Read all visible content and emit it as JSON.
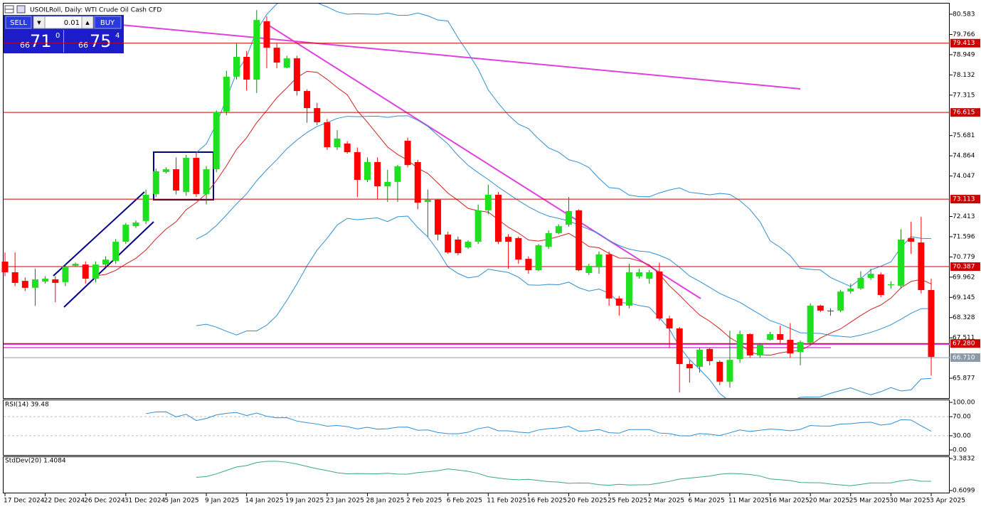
{
  "chart_data": {
    "type": "candlestick",
    "title": "USOILRoll, Daily: WTI Crude Oil Cash CFD",
    "categories": [
      "17 Dec 2024",
      null,
      null,
      null,
      "22 Dec 2024",
      null,
      null,
      null,
      "26 Dec 2024",
      null,
      null,
      null,
      "31 Dec 2024",
      null,
      null,
      null,
      "5 Jan 2025",
      null,
      null,
      null,
      "9 Jan 2025",
      null,
      null,
      null,
      "14 Jan 2025",
      null,
      null,
      null,
      "19 Jan 2025",
      null,
      null,
      null,
      "23 Jan 2025",
      null,
      null,
      null,
      "28 Jan 2025",
      null,
      null,
      null,
      "2 Feb 2025",
      null,
      null,
      null,
      "6 Feb 2025",
      null,
      null,
      null,
      "11 Feb 2025",
      null,
      null,
      null,
      "16 Feb 2025",
      null,
      null,
      null,
      "20 Feb 2025",
      null,
      null,
      null,
      "25 Feb 2025",
      null,
      null,
      null,
      "2 Mar 2025",
      null,
      null,
      null,
      "6 Mar 2025",
      null,
      null,
      null,
      "11 Mar 2025",
      null,
      null,
      null,
      "16 Mar 2025",
      null,
      null,
      null,
      "20 Mar 2025",
      null,
      null,
      null,
      "25 Mar 2025",
      null,
      null,
      null,
      "30 Mar 2025",
      null,
      null,
      null,
      "3 Apr 2025"
    ],
    "open": [
      70.59,
      70.16,
      69.81,
      69.53,
      69.78,
      69.87,
      69.76,
      70.42,
      70.47,
      69.9,
      70.47,
      70.62,
      71.39,
      72.02,
      72.23,
      73.32,
      74.21,
      74.32,
      73.4,
      74.78,
      73.32,
      74.32,
      76.65,
      78.06,
      78.86,
      77.94,
      80.3,
      79.23,
      78.43,
      78.8,
      77.48,
      76.79,
      76.22,
      75.21,
      75.36,
      75.01,
      73.89,
      74.61,
      73.63,
      73.81,
      75.47,
      74.61,
      73.0,
      73.09,
      71.68,
      71.48,
      71.16,
      71.39,
      72.66,
      73.29,
      71.59,
      71.54,
      70.7,
      70.24,
      71.19,
      71.74,
      72.08,
      72.66,
      70.13,
      70.36,
      70.88,
      69.1,
      68.81,
      69.99,
      69.9,
      70.19,
      68.29,
      67.89,
      66.45,
      66.34,
      67.06,
      66.54,
      65.74,
      66.65,
      67.66,
      66.8,
      67.43,
      67.66,
      67.43,
      66.94,
      67.31,
      68.81,
      68.61,
      68.61,
      69.38,
      69.5,
      69.93,
      70.07,
      69.67,
      69.61,
      71.54,
      71.36,
      69.44
    ],
    "high": [
      70.96,
      70.96,
      69.95,
      70.3,
      70.0,
      70.0,
      70.5,
      70.55,
      70.6,
      70.6,
      70.8,
      71.5,
      72.15,
      72.25,
      73.5,
      74.35,
      74.4,
      74.8,
      74.9,
      75.0,
      74.45,
      76.7,
      78.3,
      79.4,
      79.1,
      80.75,
      80.5,
      79.4,
      78.9,
      78.9,
      77.55,
      77.0,
      76.35,
      75.9,
      75.45,
      75.2,
      74.8,
      74.8,
      74.3,
      74.5,
      75.6,
      74.7,
      73.5,
      73.1,
      71.8,
      71.6,
      71.45,
      72.9,
      73.7,
      73.4,
      71.7,
      71.6,
      70.8,
      71.3,
      71.85,
      72.1,
      73.2,
      72.7,
      70.5,
      71.0,
      71.0,
      69.2,
      70.5,
      70.3,
      70.25,
      70.55,
      68.4,
      67.95,
      66.6,
      67.1,
      67.1,
      66.6,
      67.8,
      67.8,
      67.7,
      67.3,
      67.75,
      68.0,
      68.1,
      67.4,
      68.9,
      68.85,
      68.7,
      69.45,
      69.7,
      70.2,
      70.3,
      70.15,
      69.8,
      71.9,
      72.2,
      72.4,
      69.9
    ],
    "low": [
      70.0,
      69.6,
      69.4,
      68.8,
      69.7,
      68.95,
      69.6,
      70.4,
      69.7,
      69.75,
      70.4,
      70.5,
      71.3,
      71.95,
      72.1,
      73.2,
      74.15,
      73.3,
      73.25,
      73.2,
      72.9,
      74.2,
      76.5,
      77.95,
      77.5,
      77.4,
      78.4,
      78.4,
      78.4,
      77.3,
      76.2,
      76.1,
      75.1,
      75.1,
      74.95,
      73.2,
      73.8,
      73.1,
      73.0,
      73.0,
      74.4,
      72.7,
      71.6,
      71.45,
      70.9,
      70.85,
      71.1,
      71.3,
      72.5,
      71.3,
      70.3,
      70.5,
      70.1,
      70.2,
      71.1,
      71.7,
      72.0,
      70.2,
      70.05,
      70.1,
      68.8,
      68.4,
      68.7,
      69.9,
      69.7,
      68.2,
      67.1,
      65.3,
      65.7,
      66.1,
      66.4,
      65.6,
      65.5,
      66.5,
      66.7,
      66.7,
      67.4,
      67.3,
      66.7,
      66.4,
      67.2,
      68.55,
      68.4,
      68.55,
      69.3,
      69.45,
      69.85,
      69.15,
      69.5,
      69.5,
      70.9,
      69.3,
      65.98
    ],
    "close": [
      70.16,
      69.73,
      69.53,
      69.87,
      69.9,
      69.73,
      70.39,
      70.5,
      69.9,
      70.47,
      70.67,
      71.39,
      72.08,
      72.17,
      73.29,
      74.24,
      74.32,
      73.46,
      74.78,
      73.32,
      74.32,
      76.62,
      78.06,
      78.86,
      77.94,
      80.35,
      79.23,
      78.63,
      78.8,
      77.48,
      76.79,
      76.22,
      75.21,
      75.56,
      75.01,
      73.89,
      74.61,
      73.63,
      73.81,
      74.44,
      74.49,
      72.97,
      73.09,
      71.68,
      70.96,
      70.93,
      71.39,
      72.66,
      73.29,
      71.39,
      71.39,
      70.67,
      70.24,
      71.25,
      71.74,
      72.02,
      72.63,
      70.24,
      70.42,
      70.88,
      69.1,
      68.81,
      70.16,
      70.16,
      70.16,
      68.29,
      67.89,
      66.45,
      66.28,
      67.03,
      66.57,
      65.74,
      66.62,
      67.66,
      66.8,
      67.23,
      67.66,
      67.43,
      66.88,
      67.34,
      68.81,
      68.61,
      68.58,
      69.38,
      69.5,
      69.93,
      70.1,
      69.24,
      69.67,
      71.48,
      71.39,
      69.44,
      66.74
    ],
    "up_color": "#1ee01e",
    "down_color": "#ff0000",
    "ylim": [
      65.075,
      81.014
    ],
    "yticks": [
      80.583,
      79.766,
      78.949,
      78.132,
      77.315,
      75.681,
      74.864,
      74.047,
      72.413,
      71.596,
      70.779,
      69.962,
      69.145,
      68.328,
      67.511,
      65.877
    ],
    "hlines": [
      79.413,
      76.615,
      73.113,
      70.387,
      {
        "value": 67.28,
        "label": "67.280"
      }
    ],
    "hline_color": "#cc0000",
    "last_price": {
      "value": 66.71,
      "label": "66.710"
    },
    "rsi": {
      "title": "RSI(14) 39.48",
      "ylim": [
        0,
        100
      ],
      "yticks": [
        {
          "value": 100,
          "label": "100.00"
        },
        {
          "value": 70,
          "label": "70.00"
        },
        {
          "value": 30,
          "label": "30.00"
        },
        {
          "value": 0,
          "label": "0.00"
        }
      ],
      "levels": [
        70,
        30
      ]
    },
    "stddev": {
      "title": "StdDev(20) 1.4084",
      "ylim": [
        0.6099,
        3.3832
      ],
      "yticks": [
        3.3832,
        0.6099
      ]
    },
    "trade_panel": {
      "sell": "SELL",
      "buy": "BUY",
      "lot": 0.01,
      "bid": [
        "66",
        "71",
        "0"
      ],
      "ask": [
        "66",
        "75",
        "4"
      ]
    }
  }
}
